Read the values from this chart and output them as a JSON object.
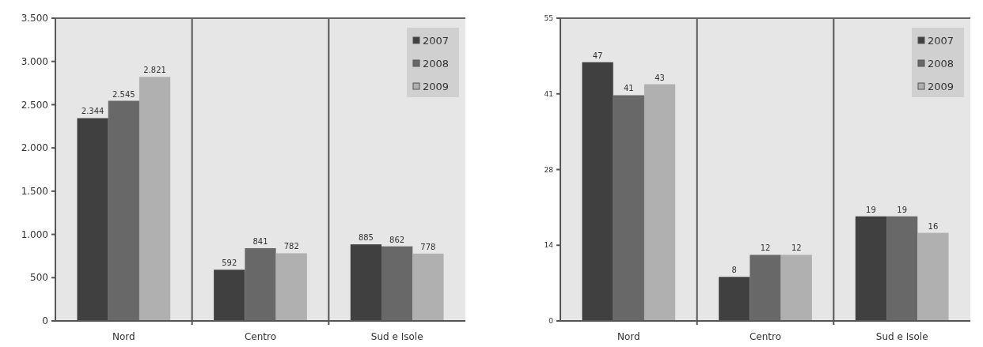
{
  "chart_data": [
    {
      "type": "bar",
      "categories": [
        "Nord",
        "Centro",
        "Sud e Isole"
      ],
      "series": [
        {
          "name": "2007",
          "color": "#404040",
          "values": [
            2344,
            592,
            885
          ],
          "value_labels": [
            "2.344",
            "592",
            "885"
          ]
        },
        {
          "name": "2008",
          "color": "#686868",
          "values": [
            2545,
            841,
            862
          ],
          "value_labels": [
            "2.545",
            "841",
            "862"
          ]
        },
        {
          "name": "2009",
          "color": "#b0b0b0",
          "values": [
            2821,
            782,
            778
          ],
          "value_labels": [
            "2.821",
            "782",
            "778"
          ]
        }
      ],
      "ylim": [
        0,
        3500
      ],
      "yticks": [
        0,
        500,
        {
          "value": 1000,
          "label": "1.000"
        },
        {
          "value": 1500,
          "label": "1.500"
        },
        {
          "value": 2000,
          "label": "2.000"
        },
        {
          "value": 2500,
          "label": "2.500"
        },
        {
          "value": 3000,
          "label": "3.000"
        },
        {
          "value": 3500,
          "label": "3.500"
        }
      ],
      "legend": "top right"
    },
    {
      "type": "bar",
      "categories": [
        "Nord",
        "Centro",
        "Sud e Isole"
      ],
      "series": [
        {
          "name": "2007",
          "color": "#404040",
          "values": [
            47,
            8,
            19
          ]
        },
        {
          "name": "2008",
          "color": "#686868",
          "values": [
            41,
            12,
            19
          ]
        },
        {
          "name": "2009",
          "color": "#b0b0b0",
          "values": [
            43,
            12,
            16
          ]
        }
      ],
      "ylim": [
        0,
        55
      ],
      "yticks": [
        0,
        {
          "value": 13.75,
          "label": "14"
        },
        {
          "value": 27.5,
          "label": "28"
        },
        {
          "value": 41.25,
          "label": "41"
        },
        55
      ],
      "data_labels": true,
      "legend": "top right"
    }
  ]
}
